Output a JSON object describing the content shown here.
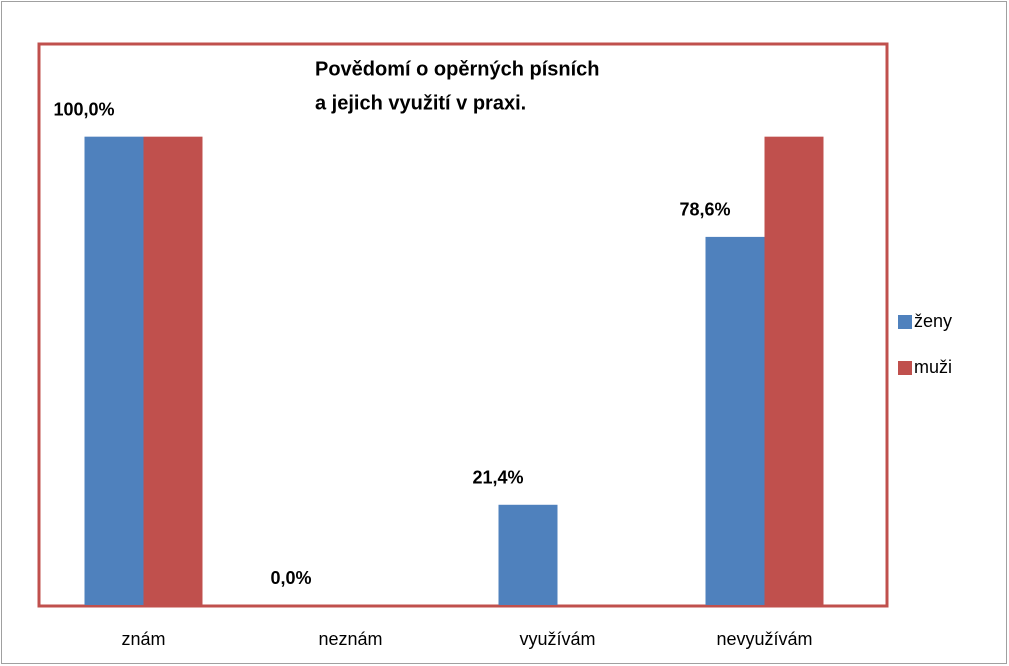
{
  "chart_data": {
    "type": "bar",
    "title": [
      "Povědomí o opěrných písních",
      "a jejich využití v praxi."
    ],
    "categories": [
      "znám",
      "neznám",
      "využívám",
      "nevyužívám"
    ],
    "series": [
      {
        "name": "ženy",
        "color": "#4f81bd",
        "values": [
          100,
          0,
          21.4,
          78.6
        ],
        "value_labels": [
          "100,0%",
          "0,0%",
          "21,4%",
          "78,6%"
        ]
      },
      {
        "name": "muži",
        "color": "#c0504d",
        "values": [
          100,
          0,
          0,
          100
        ]
      }
    ],
    "ylim": [
      0,
      120
    ],
    "grid": false,
    "legend": "right"
  }
}
